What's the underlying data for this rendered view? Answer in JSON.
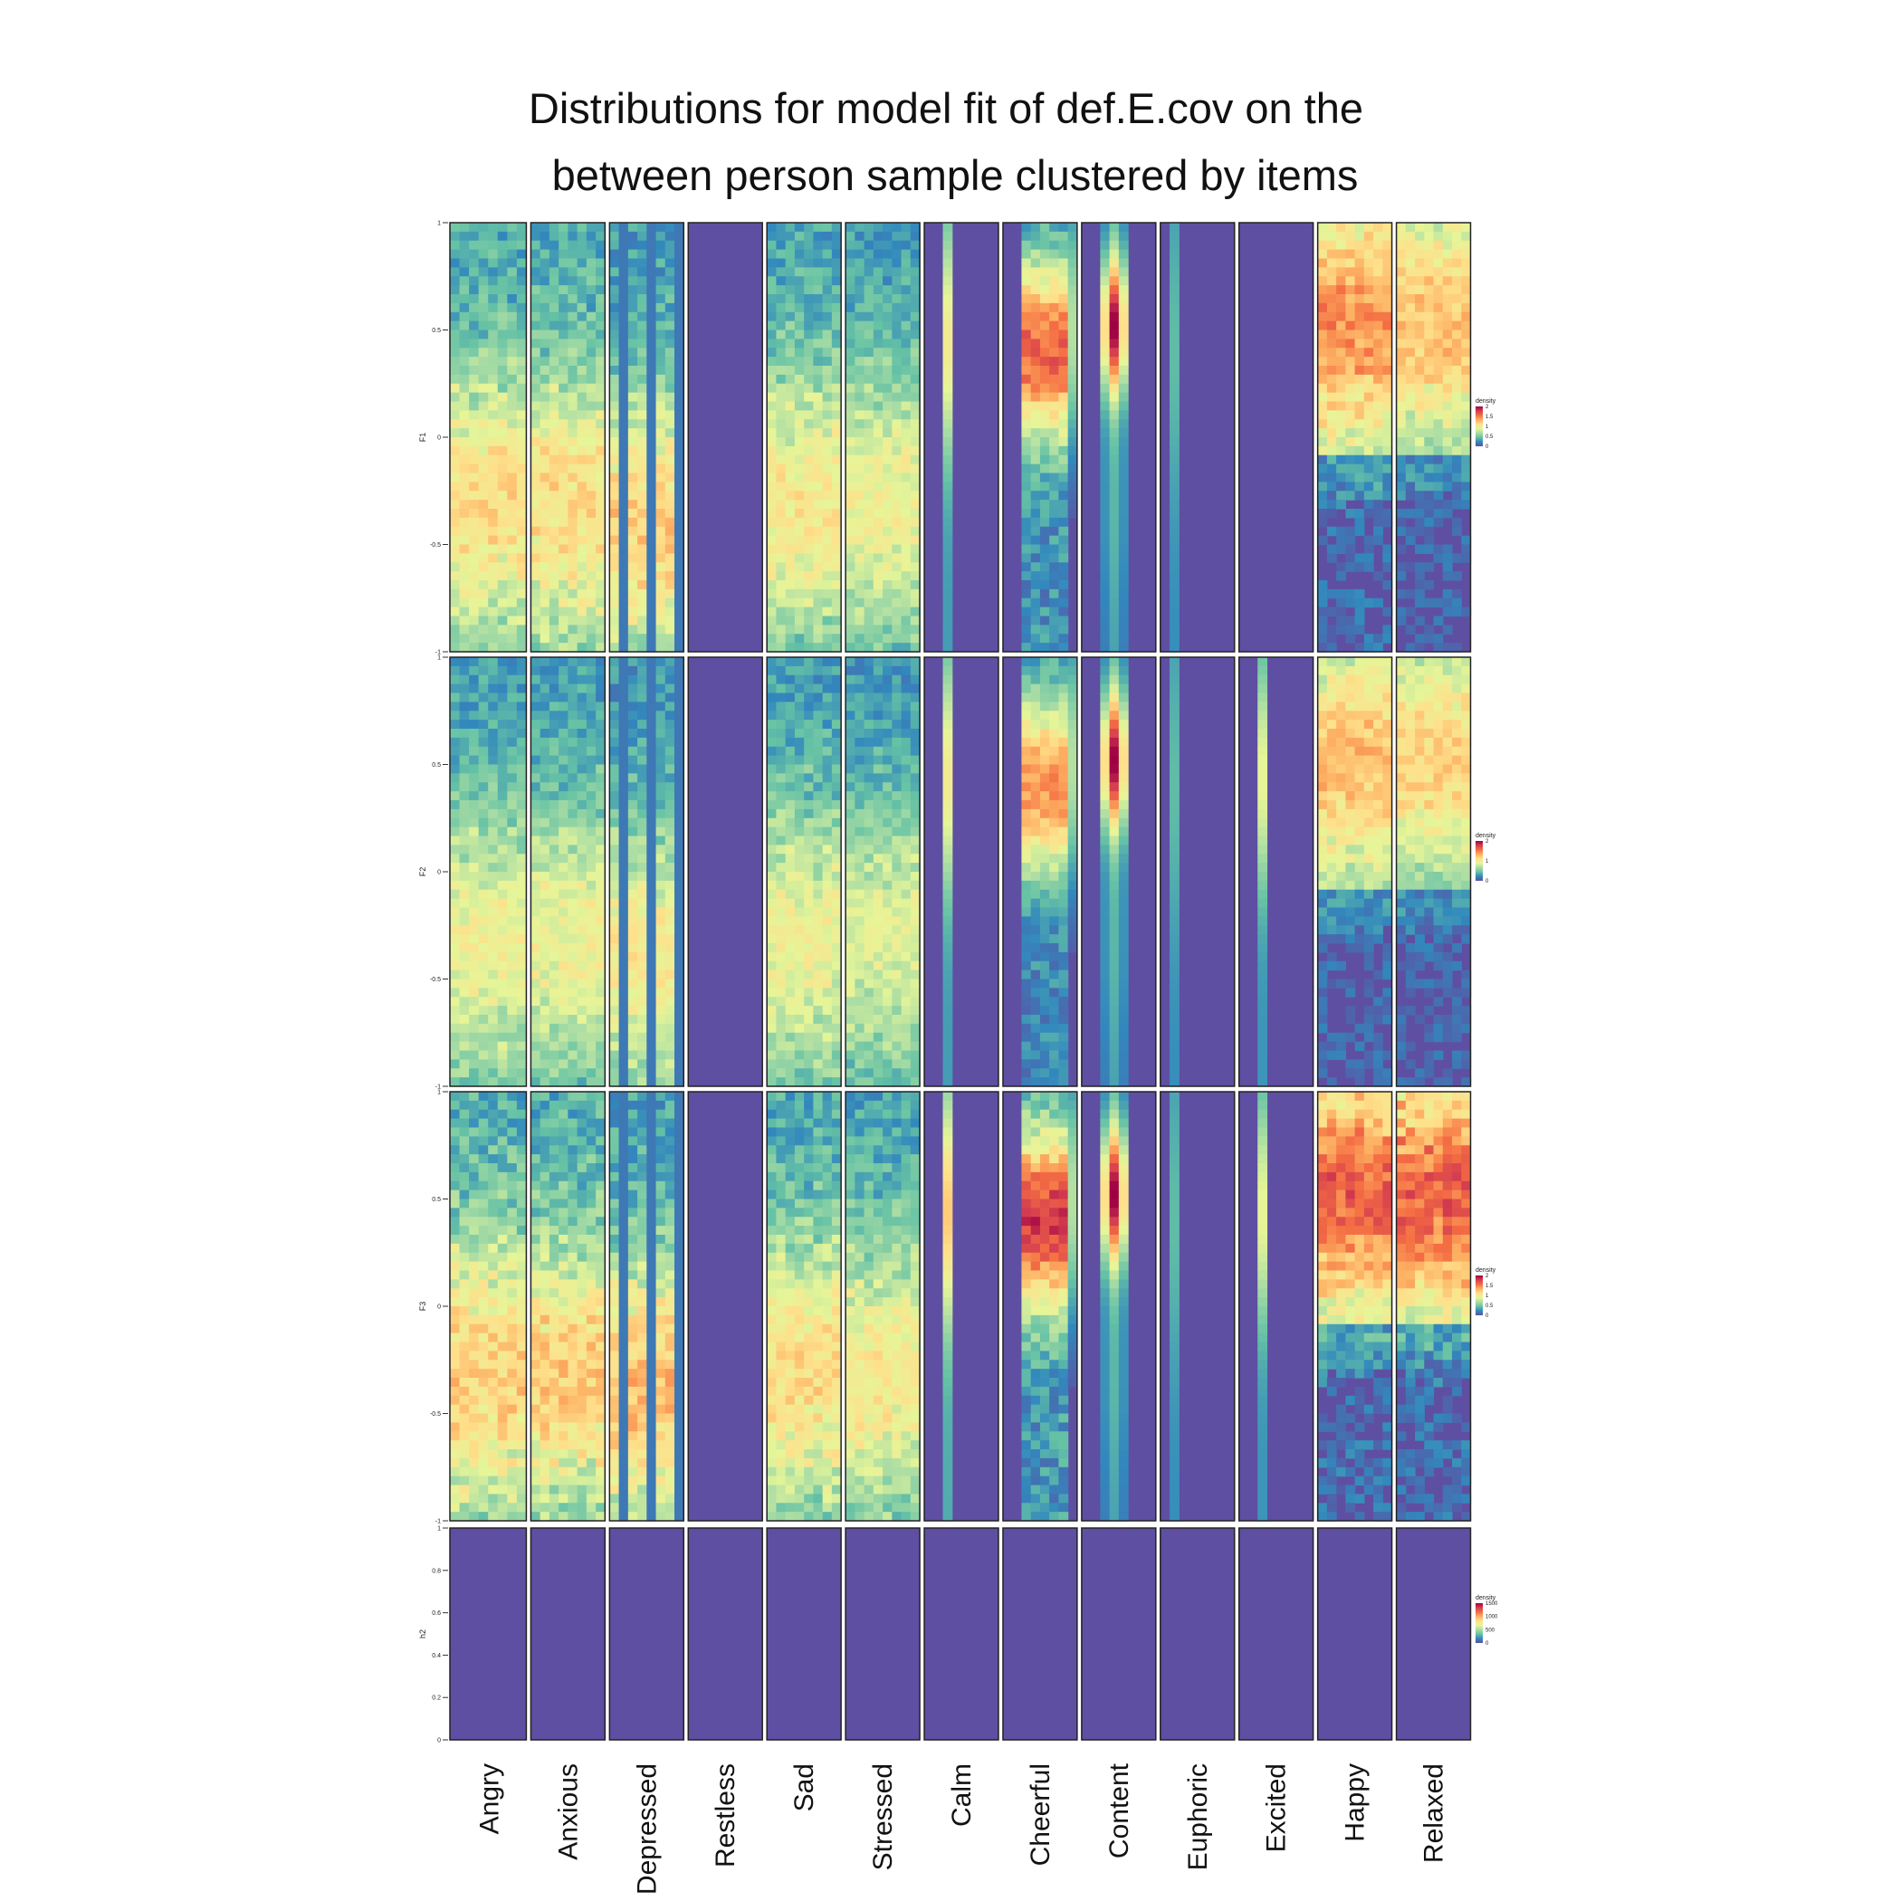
{
  "title": {
    "line1": "Distributions for model fit of def.E.cov on the",
    "line2": "between person sample clustered by items"
  },
  "chart_data": {
    "type": "heatmap",
    "columns": [
      "Angry",
      "Anxious",
      "Depressed",
      "Restless",
      "Sad",
      "Stressed",
      "Calm",
      "Cheerful",
      "Content",
      "Euphoric",
      "Excited",
      "Happy",
      "Relaxed"
    ],
    "rows": [
      {
        "ylabel": "F1",
        "ylim": [
          -1,
          1
        ],
        "yticks": [
          "1",
          "0.5",
          "0",
          "-0.5",
          "-1"
        ],
        "legend": {
          "title": "density",
          "labels": [
            "2",
            "1.5",
            "1",
            "0.5",
            "0"
          ],
          "max": 2
        },
        "columns": [
          {
            "name": "Angry",
            "profile": "negative",
            "strength": 0.7
          },
          {
            "name": "Anxious",
            "profile": "negative",
            "strength": 0.7
          },
          {
            "name": "Depressed",
            "profile": "negative-sparse",
            "strength": 0.75
          },
          {
            "name": "Restless",
            "profile": "empty",
            "strength": 0
          },
          {
            "name": "Sad",
            "profile": "negative",
            "strength": 0.65
          },
          {
            "name": "Stressed",
            "profile": "negative",
            "strength": 0.6
          },
          {
            "name": "Calm",
            "profile": "thin-line",
            "strength": 0.5
          },
          {
            "name": "Cheerful",
            "profile": "positive-narrow",
            "strength": 0.85
          },
          {
            "name": "Content",
            "profile": "positive-peak",
            "strength": 1.0
          },
          {
            "name": "Euphoric",
            "profile": "faint-line",
            "strength": 0.3
          },
          {
            "name": "Excited",
            "profile": "empty",
            "strength": 0
          },
          {
            "name": "Happy",
            "profile": "positive-broad",
            "strength": 0.8
          },
          {
            "name": "Relaxed",
            "profile": "positive-broad",
            "strength": 0.7
          }
        ]
      },
      {
        "ylabel": "F2",
        "ylim": [
          -1,
          1
        ],
        "yticks": [
          "1",
          "0.5",
          "0",
          "-0.5",
          "-1"
        ],
        "legend": {
          "title": "density",
          "labels": [
            "2",
            "1",
            "0"
          ],
          "max": 2
        },
        "columns": [
          {
            "name": "Angry",
            "profile": "negative",
            "strength": 0.6
          },
          {
            "name": "Anxious",
            "profile": "negative",
            "strength": 0.6
          },
          {
            "name": "Depressed",
            "profile": "negative-sparse",
            "strength": 0.65
          },
          {
            "name": "Restless",
            "profile": "empty",
            "strength": 0
          },
          {
            "name": "Sad",
            "profile": "negative",
            "strength": 0.6
          },
          {
            "name": "Stressed",
            "profile": "negative",
            "strength": 0.55
          },
          {
            "name": "Calm",
            "profile": "thin-line",
            "strength": 0.5
          },
          {
            "name": "Cheerful",
            "profile": "positive-narrow",
            "strength": 0.75
          },
          {
            "name": "Content",
            "profile": "positive-peak",
            "strength": 1.0
          },
          {
            "name": "Euphoric",
            "profile": "faint-line",
            "strength": 0.3
          },
          {
            "name": "Excited",
            "profile": "thin-line",
            "strength": 0.45
          },
          {
            "name": "Happy",
            "profile": "positive-broad",
            "strength": 0.7
          },
          {
            "name": "Relaxed",
            "profile": "positive-broad",
            "strength": 0.65
          }
        ]
      },
      {
        "ylabel": "F3",
        "ylim": [
          -1,
          1
        ],
        "yticks": [
          "1",
          "0.5",
          "0",
          "-0.5",
          "-1"
        ],
        "legend": {
          "title": "density",
          "labels": [
            "2",
            "1.5",
            "1",
            "0.5",
            "0"
          ],
          "max": 2
        },
        "columns": [
          {
            "name": "Angry",
            "profile": "negative",
            "strength": 0.75
          },
          {
            "name": "Anxious",
            "profile": "negative",
            "strength": 0.75
          },
          {
            "name": "Depressed",
            "profile": "negative-sparse",
            "strength": 0.8
          },
          {
            "name": "Restless",
            "profile": "empty",
            "strength": 0
          },
          {
            "name": "Sad",
            "profile": "negative",
            "strength": 0.7
          },
          {
            "name": "Stressed",
            "profile": "negative",
            "strength": 0.65
          },
          {
            "name": "Calm",
            "profile": "thin-line",
            "strength": 0.6
          },
          {
            "name": "Cheerful",
            "profile": "positive-narrow",
            "strength": 0.95
          },
          {
            "name": "Content",
            "profile": "positive-peak",
            "strength": 1.0
          },
          {
            "name": "Euphoric",
            "profile": "faint-line",
            "strength": 0.3
          },
          {
            "name": "Excited",
            "profile": "thin-line",
            "strength": 0.45
          },
          {
            "name": "Happy",
            "profile": "positive-broad",
            "strength": 0.9
          },
          {
            "name": "Relaxed",
            "profile": "positive-broad",
            "strength": 0.9
          }
        ]
      },
      {
        "ylabel": "h2",
        "ylim": [
          0,
          1
        ],
        "yticks": [
          "1",
          "0.8",
          "0.6",
          "0.4",
          "0.2",
          "0"
        ],
        "legend": {
          "title": "density",
          "labels": [
            "1500",
            "1000",
            "500",
            "0"
          ],
          "max": 1500
        },
        "columns": [
          {
            "name": "Angry",
            "profile": "empty",
            "strength": 0
          },
          {
            "name": "Anxious",
            "profile": "empty",
            "strength": 0
          },
          {
            "name": "Depressed",
            "profile": "empty",
            "strength": 0
          },
          {
            "name": "Restless",
            "profile": "empty",
            "strength": 0
          },
          {
            "name": "Sad",
            "profile": "empty",
            "strength": 0
          },
          {
            "name": "Stressed",
            "profile": "empty",
            "strength": 0
          },
          {
            "name": "Calm",
            "profile": "empty",
            "strength": 0
          },
          {
            "name": "Cheerful",
            "profile": "empty",
            "strength": 0
          },
          {
            "name": "Content",
            "profile": "empty",
            "strength": 0
          },
          {
            "name": "Euphoric",
            "profile": "empty",
            "strength": 0
          },
          {
            "name": "Excited",
            "profile": "empty",
            "strength": 0
          },
          {
            "name": "Happy",
            "profile": "empty",
            "strength": 0
          },
          {
            "name": "Relaxed",
            "profile": "empty",
            "strength": 0
          }
        ]
      }
    ],
    "colorscale": [
      "#5e4fa2",
      "#3288bd",
      "#66c2a5",
      "#abdda4",
      "#e6f598",
      "#fee08b",
      "#fdae61",
      "#f46d43",
      "#d53e4f",
      "#9e0142"
    ]
  }
}
